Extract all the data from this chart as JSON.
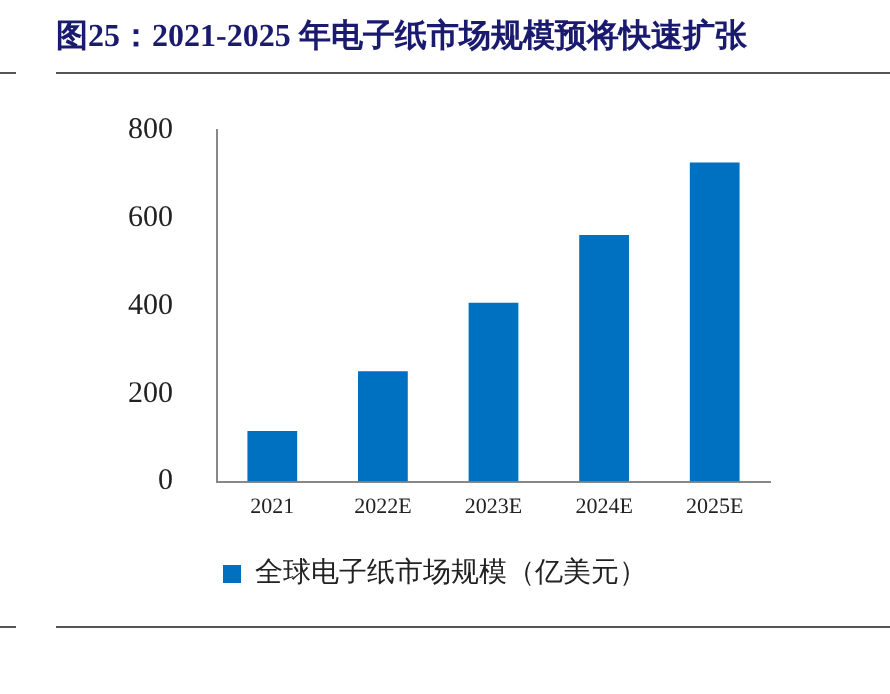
{
  "chart_data": {
    "type": "bar",
    "title": "图25：2021-2025 年电子纸市场规模预将快速扩张",
    "categories": [
      "2021",
      "2022E",
      "2023E",
      "2024E",
      "2025E"
    ],
    "series": [
      {
        "name": "全球电子纸市场规模（亿美元）",
        "color": "#0070c0",
        "values": [
          115,
          251,
          407,
          561,
          726
        ]
      }
    ],
    "ylim": [
      0,
      800
    ],
    "yticks": [
      0,
      200,
      400,
      600,
      800
    ],
    "grid": false,
    "legend": "bottom"
  }
}
